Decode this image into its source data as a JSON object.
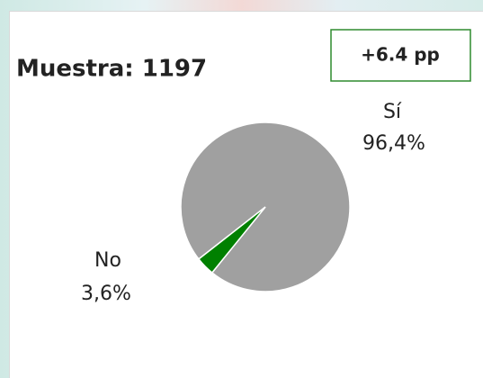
{
  "chart_data": {
    "type": "pie",
    "title": "Muestra: 1197",
    "annotation": "+6.4 pp",
    "categories": [
      "Sí",
      "No"
    ],
    "values": [
      96.4,
      3.6
    ],
    "value_labels": [
      "96,4%",
      "3,6%"
    ],
    "colors": [
      "#a0a0a0",
      "#008000"
    ]
  }
}
